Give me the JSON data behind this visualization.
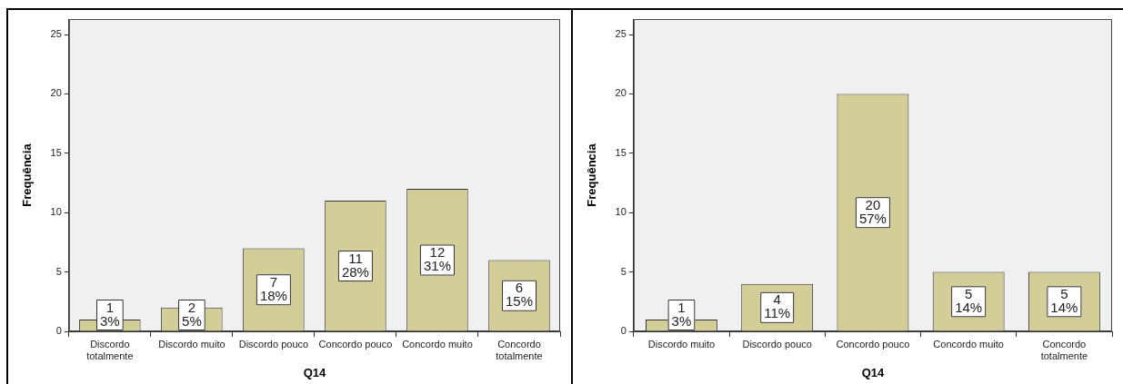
{
  "chart_data": [
    {
      "type": "bar",
      "xlabel": "Q14",
      "ylabel": "Frequência",
      "categories": [
        "Discordo totalmente",
        "Discordo muito",
        "Discordo pouco",
        "Concordo pouco",
        "Concordo muito",
        "Concordo totalmente"
      ],
      "values": [
        1,
        2,
        7,
        11,
        12,
        6
      ],
      "color": "#d3ce97",
      "value_labels": [
        "1\n3%",
        "2\n5%",
        "7\n18%",
        "11\n28%",
        "12\n31%",
        "6\n15%"
      ],
      "ylim": [
        0,
        26.3
      ],
      "yticks": [
        0,
        5,
        10,
        15,
        20,
        25
      ],
      "grid": false,
      "legend": false
    },
    {
      "type": "bar",
      "xlabel": "Q14",
      "ylabel": "Frequência",
      "categories": [
        "Discordo muito",
        "Discordo pouco",
        "Concordo pouco",
        "Concordo muito",
        "Concordo totalmente"
      ],
      "values": [
        1,
        4,
        20,
        5,
        5
      ],
      "color": "#d3ce97",
      "value_labels": [
        "1\n3%",
        "4\n11%",
        "20\n57%",
        "5\n14%",
        "5\n14%"
      ],
      "ylim": [
        0,
        26.3
      ],
      "yticks": [
        0,
        5,
        10,
        15,
        20,
        25
      ],
      "grid": false,
      "legend": false
    }
  ]
}
